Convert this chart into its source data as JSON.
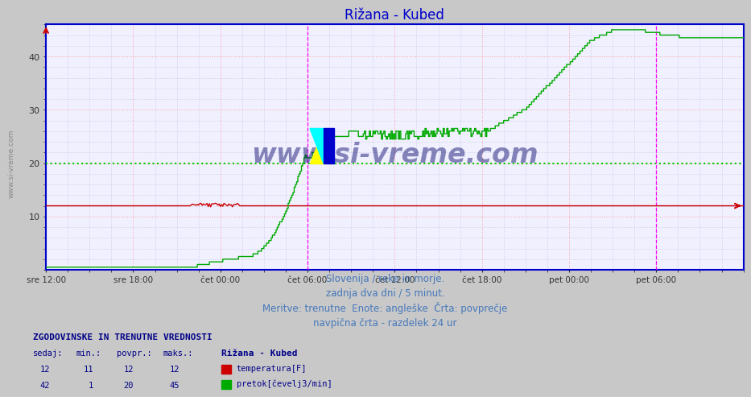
{
  "title": "Rižana - Kubed",
  "title_color": "#0000cc",
  "bg_color": "#c8c8c8",
  "plot_bg_color": "#f0f0ff",
  "grid_color_major": "#ff9999",
  "grid_color_minor": "#bbbbdd",
  "xlim": [
    0,
    576
  ],
  "ylim": [
    0,
    46
  ],
  "yticks": [
    10,
    20,
    30,
    40
  ],
  "ytick_top": 46,
  "xtick_labels": [
    "sre 12:00",
    "sre 18:00",
    "čet 00:00",
    "čet 06:00",
    "čet 12:00",
    "čet 18:00",
    "pet 00:00",
    "pet 06:00"
  ],
  "xtick_positions": [
    0,
    72,
    144,
    216,
    288,
    360,
    432,
    504
  ],
  "vline_positions": [
    216,
    504
  ],
  "vline_color": "#ff00ff",
  "avg_line_y": 20,
  "avg_line_color": "#00cc00",
  "temp_color": "#cc0000",
  "flow_color": "#00aa00",
  "watermark_text": "www.si-vreme.com",
  "watermark_color": "#000066",
  "info_line1": "Slovenija / reke in morje.",
  "info_line2": "zadnja dva dni / 5 minut.",
  "info_line3": "Meritve: trenutne  Enote: angleške  Črta: povprečje",
  "info_line4": "navpična črta - razdelek 24 ur",
  "info_color": "#4477bb",
  "legend_title": "ZGODOVINSKE IN TRENUTNE VREDNOSTI",
  "legend_color": "#000088",
  "col_headers": [
    "sedaj:",
    "min.:",
    "povpr.:",
    "maks.:"
  ],
  "station_name": "Rižana - Kubed",
  "temp_row": [
    12,
    11,
    12,
    12
  ],
  "flow_row": [
    42,
    1,
    20,
    45
  ],
  "temp_label": "temperatura[F]",
  "flow_label": "pretok[čevelj3/min]",
  "sidebar_text": "www.si-vreme.com",
  "sidebar_color": "#888888",
  "spine_color": "#0000cc",
  "arrow_color": "#cc0000"
}
